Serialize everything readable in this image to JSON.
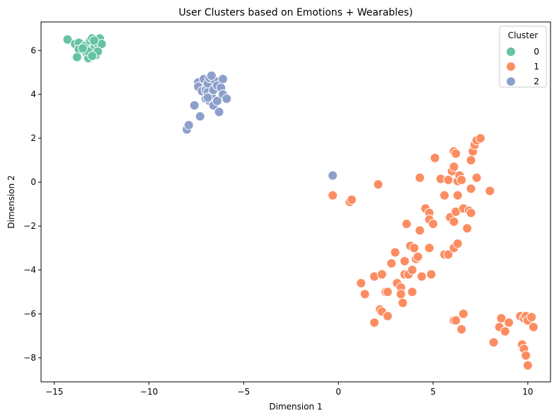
{
  "chart_data": {
    "type": "scatter",
    "title": "User Clusters based on Emotions + Wearables)",
    "xlabel": "Dimension 1",
    "ylabel": "Dimension 2",
    "xlim": [
      -15.7,
      11.2
    ],
    "ylim": [
      -9.1,
      7.3
    ],
    "xticks": [
      -15,
      -10,
      -5,
      0,
      5,
      10
    ],
    "yticks": [
      -8,
      -6,
      -4,
      -2,
      0,
      2,
      4,
      6
    ],
    "grid": false,
    "legend": {
      "title": "Cluster",
      "position": "top-right"
    },
    "series": [
      {
        "name": "0",
        "color": "#66c2a5",
        "points": [
          [
            -14.3,
            6.5
          ],
          [
            -13.9,
            6.3
          ],
          [
            -13.7,
            6.35
          ],
          [
            -13.7,
            6.05
          ],
          [
            -13.8,
            5.7
          ],
          [
            -13.4,
            6.2
          ],
          [
            -13.3,
            5.9
          ],
          [
            -13.2,
            5.65
          ],
          [
            -13.1,
            6.45
          ],
          [
            -13.0,
            6.55
          ],
          [
            -12.9,
            6.1
          ],
          [
            -12.8,
            5.8
          ],
          [
            -12.7,
            6.3
          ],
          [
            -12.6,
            6.55
          ],
          [
            -12.5,
            6.3
          ],
          [
            -12.7,
            5.95
          ],
          [
            -13.2,
            5.95
          ],
          [
            -13.5,
            6.1
          ],
          [
            -13.0,
            5.75
          ],
          [
            -12.9,
            6.45
          ]
        ]
      },
      {
        "name": "1",
        "color": "#fc8d62",
        "points": [
          [
            -0.3,
            -0.6
          ],
          [
            0.6,
            -0.9
          ],
          [
            0.7,
            -0.8
          ],
          [
            2.1,
            -0.1
          ],
          [
            1.9,
            -4.3
          ],
          [
            2.3,
            -4.2
          ],
          [
            1.2,
            -4.6
          ],
          [
            1.4,
            -5.1
          ],
          [
            2.2,
            -5.8
          ],
          [
            2.3,
            -5.9
          ],
          [
            2.5,
            -5.0
          ],
          [
            2.6,
            -5.0
          ],
          [
            1.9,
            -6.4
          ],
          [
            2.6,
            -6.1
          ],
          [
            2.8,
            -3.7
          ],
          [
            3.0,
            -3.2
          ],
          [
            3.1,
            -4.6
          ],
          [
            3.3,
            -4.8
          ],
          [
            3.3,
            -5.1
          ],
          [
            3.4,
            -5.5
          ],
          [
            3.5,
            -3.6
          ],
          [
            3.5,
            -4.2
          ],
          [
            3.6,
            -1.9
          ],
          [
            3.7,
            -4.2
          ],
          [
            3.8,
            -2.9
          ],
          [
            3.9,
            -5.0
          ],
          [
            3.9,
            -4.0
          ],
          [
            4.0,
            -3.0
          ],
          [
            4.1,
            -3.5
          ],
          [
            4.2,
            -3.4
          ],
          [
            4.3,
            -2.2
          ],
          [
            4.3,
            0.2
          ],
          [
            4.4,
            -4.3
          ],
          [
            4.6,
            -1.2
          ],
          [
            4.8,
            -1.4
          ],
          [
            4.8,
            -1.7
          ],
          [
            4.8,
            -3.0
          ],
          [
            4.9,
            -4.2
          ],
          [
            5.0,
            -1.9
          ],
          [
            5.1,
            1.1
          ],
          [
            5.4,
            0.15
          ],
          [
            5.6,
            -3.3
          ],
          [
            5.6,
            -0.6
          ],
          [
            5.8,
            -3.3
          ],
          [
            5.8,
            0.1
          ],
          [
            5.9,
            -1.6
          ],
          [
            6.0,
            0.5
          ],
          [
            6.1,
            0.7
          ],
          [
            6.1,
            1.4
          ],
          [
            6.1,
            -1.8
          ],
          [
            6.1,
            -3.0
          ],
          [
            6.1,
            -6.3
          ],
          [
            6.2,
            -1.35
          ],
          [
            6.2,
            -6.3
          ],
          [
            6.2,
            1.3
          ],
          [
            6.3,
            -2.8
          ],
          [
            6.3,
            -0.6
          ],
          [
            6.3,
            0.05
          ],
          [
            6.4,
            0.3
          ],
          [
            6.5,
            0.1
          ],
          [
            6.5,
            -6.7
          ],
          [
            6.6,
            -6.0
          ],
          [
            6.6,
            -1.2
          ],
          [
            6.8,
            -2.1
          ],
          [
            6.9,
            -1.3
          ],
          [
            7.0,
            -1.4
          ],
          [
            7.0,
            -0.3
          ],
          [
            7.0,
            1.0
          ],
          [
            7.1,
            1.4
          ],
          [
            7.2,
            1.7
          ],
          [
            7.3,
            1.9
          ],
          [
            7.3,
            0.2
          ],
          [
            7.5,
            2.0
          ],
          [
            8.0,
            -0.4
          ],
          [
            8.2,
            -7.3
          ],
          [
            8.5,
            -6.6
          ],
          [
            8.6,
            -6.2
          ],
          [
            8.8,
            -6.8
          ],
          [
            9.0,
            -6.4
          ],
          [
            9.6,
            -6.1
          ],
          [
            9.7,
            -7.4
          ],
          [
            9.8,
            -6.2
          ],
          [
            9.8,
            -7.6
          ],
          [
            9.9,
            -7.9
          ],
          [
            9.9,
            -6.1
          ],
          [
            10.0,
            -8.35
          ],
          [
            10.0,
            -6.3
          ],
          [
            10.2,
            -6.15
          ],
          [
            10.3,
            -6.6
          ]
        ]
      },
      {
        "name": "2",
        "color": "#8da0cb",
        "points": [
          [
            -8.0,
            2.4
          ],
          [
            -7.9,
            2.6
          ],
          [
            -7.6,
            3.5
          ],
          [
            -7.4,
            4.55
          ],
          [
            -7.4,
            4.35
          ],
          [
            -7.3,
            3.0
          ],
          [
            -7.2,
            4.15
          ],
          [
            -7.1,
            4.7
          ],
          [
            -7.0,
            3.8
          ],
          [
            -7.0,
            4.2
          ],
          [
            -6.9,
            4.1
          ],
          [
            -6.9,
            4.5
          ],
          [
            -6.8,
            4.75
          ],
          [
            -6.8,
            3.7
          ],
          [
            -6.7,
            3.95
          ],
          [
            -6.6,
            4.2
          ],
          [
            -6.6,
            3.5
          ],
          [
            -6.5,
            4.6
          ],
          [
            -6.4,
            4.4
          ],
          [
            -6.4,
            3.7
          ],
          [
            -6.3,
            3.2
          ],
          [
            -6.2,
            4.3
          ],
          [
            -6.1,
            4.7
          ],
          [
            -6.1,
            4.0
          ],
          [
            -5.9,
            3.8
          ],
          [
            -6.7,
            4.85
          ],
          [
            -6.9,
            3.85
          ],
          [
            -0.3,
            0.3
          ]
        ]
      }
    ]
  }
}
